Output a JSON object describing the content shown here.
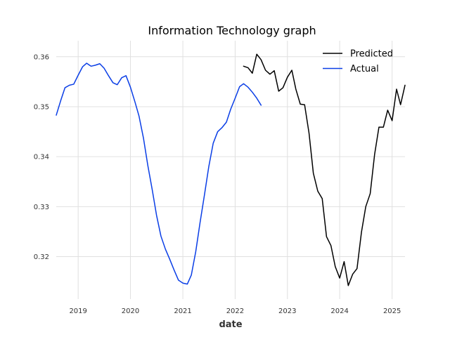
{
  "chart_data": {
    "type": "line",
    "title": "Information Technology graph",
    "xlabel": "date",
    "ylabel": "",
    "x_type": "date",
    "xlim": [
      "2018-08-01",
      "2025-04-01"
    ],
    "ylim": [
      0.3115,
      0.3632
    ],
    "x_ticks": [
      "2019-01-01",
      "2020-01-01",
      "2021-01-01",
      "2022-01-01",
      "2023-01-01",
      "2024-01-01",
      "2025-01-01"
    ],
    "x_tick_labels": [
      "2019",
      "2020",
      "2021",
      "2022",
      "2023",
      "2024",
      "2025"
    ],
    "y_ticks": [
      0.32,
      0.33,
      0.34,
      0.35,
      0.36
    ],
    "y_tick_labels": [
      "0.32",
      "0.33",
      "0.34",
      "0.35",
      "0.36"
    ],
    "grid": true,
    "legend_position": "top-right",
    "series": [
      {
        "name": "Predicted",
        "color": "#000000",
        "points": [
          [
            "2022-03-01",
            0.3581
          ],
          [
            "2022-04-01",
            0.3578
          ],
          [
            "2022-05-01",
            0.3567
          ],
          [
            "2022-06-01",
            0.3605
          ],
          [
            "2022-07-01",
            0.3594
          ],
          [
            "2022-08-01",
            0.3573
          ],
          [
            "2022-09-01",
            0.3565
          ],
          [
            "2022-10-01",
            0.3572
          ],
          [
            "2022-11-01",
            0.3531
          ],
          [
            "2022-12-01",
            0.3538
          ],
          [
            "2023-01-01",
            0.3559
          ],
          [
            "2023-02-01",
            0.3573
          ],
          [
            "2023-03-01",
            0.3535
          ],
          [
            "2023-04-01",
            0.3505
          ],
          [
            "2023-05-01",
            0.3504
          ],
          [
            "2023-06-01",
            0.3447
          ],
          [
            "2023-07-01",
            0.3367
          ],
          [
            "2023-08-01",
            0.3331
          ],
          [
            "2023-09-01",
            0.3316
          ],
          [
            "2023-10-01",
            0.324
          ],
          [
            "2023-11-01",
            0.3222
          ],
          [
            "2023-12-01",
            0.318
          ],
          [
            "2024-01-01",
            0.3157
          ],
          [
            "2024-02-01",
            0.319
          ],
          [
            "2024-03-01",
            0.3142
          ],
          [
            "2024-04-01",
            0.3165
          ],
          [
            "2024-05-01",
            0.3176
          ],
          [
            "2024-06-01",
            0.3249
          ],
          [
            "2024-07-01",
            0.33
          ],
          [
            "2024-08-01",
            0.3326
          ],
          [
            "2024-09-01",
            0.3405
          ],
          [
            "2024-10-01",
            0.3459
          ],
          [
            "2024-11-01",
            0.3459
          ],
          [
            "2024-12-01",
            0.3493
          ],
          [
            "2025-01-01",
            0.3472
          ],
          [
            "2025-02-01",
            0.3535
          ],
          [
            "2025-03-01",
            0.3504
          ],
          [
            "2025-04-01",
            0.3543
          ]
        ]
      },
      {
        "name": "Actual",
        "color": "#0a3ee6",
        "points": [
          [
            "2018-08-01",
            0.3483
          ],
          [
            "2018-09-01",
            0.3512
          ],
          [
            "2018-10-01",
            0.3538
          ],
          [
            "2018-11-01",
            0.3543
          ],
          [
            "2018-12-01",
            0.3545
          ],
          [
            "2019-01-01",
            0.3563
          ],
          [
            "2019-02-01",
            0.358
          ],
          [
            "2019-03-01",
            0.3587
          ],
          [
            "2019-04-01",
            0.3581
          ],
          [
            "2019-05-01",
            0.3583
          ],
          [
            "2019-06-01",
            0.3586
          ],
          [
            "2019-07-01",
            0.3577
          ],
          [
            "2019-08-01",
            0.3562
          ],
          [
            "2019-09-01",
            0.3548
          ],
          [
            "2019-10-01",
            0.3544
          ],
          [
            "2019-11-01",
            0.3558
          ],
          [
            "2019-12-01",
            0.3562
          ],
          [
            "2020-01-01",
            0.3539
          ],
          [
            "2020-02-01",
            0.351
          ],
          [
            "2020-03-01",
            0.3481
          ],
          [
            "2020-04-01",
            0.3437
          ],
          [
            "2020-05-01",
            0.3383
          ],
          [
            "2020-06-01",
            0.3334
          ],
          [
            "2020-07-01",
            0.3283
          ],
          [
            "2020-08-01",
            0.3241
          ],
          [
            "2020-09-01",
            0.3215
          ],
          [
            "2020-10-01",
            0.3195
          ],
          [
            "2020-11-01",
            0.3173
          ],
          [
            "2020-12-01",
            0.3153
          ],
          [
            "2021-01-01",
            0.3147
          ],
          [
            "2021-02-01",
            0.3145
          ],
          [
            "2021-03-01",
            0.3163
          ],
          [
            "2021-04-01",
            0.321
          ],
          [
            "2021-05-01",
            0.3268
          ],
          [
            "2021-06-01",
            0.3324
          ],
          [
            "2021-07-01",
            0.338
          ],
          [
            "2021-08-01",
            0.3427
          ],
          [
            "2021-09-01",
            0.345
          ],
          [
            "2021-10-01",
            0.3458
          ],
          [
            "2021-11-01",
            0.3469
          ],
          [
            "2021-12-01",
            0.3495
          ],
          [
            "2022-01-01",
            0.3517
          ],
          [
            "2022-02-01",
            0.354
          ],
          [
            "2022-03-01",
            0.3546
          ],
          [
            "2022-04-01",
            0.3539
          ],
          [
            "2022-05-01",
            0.3529
          ],
          [
            "2022-06-01",
            0.3517
          ],
          [
            "2022-07-01",
            0.3503
          ]
        ]
      }
    ]
  }
}
